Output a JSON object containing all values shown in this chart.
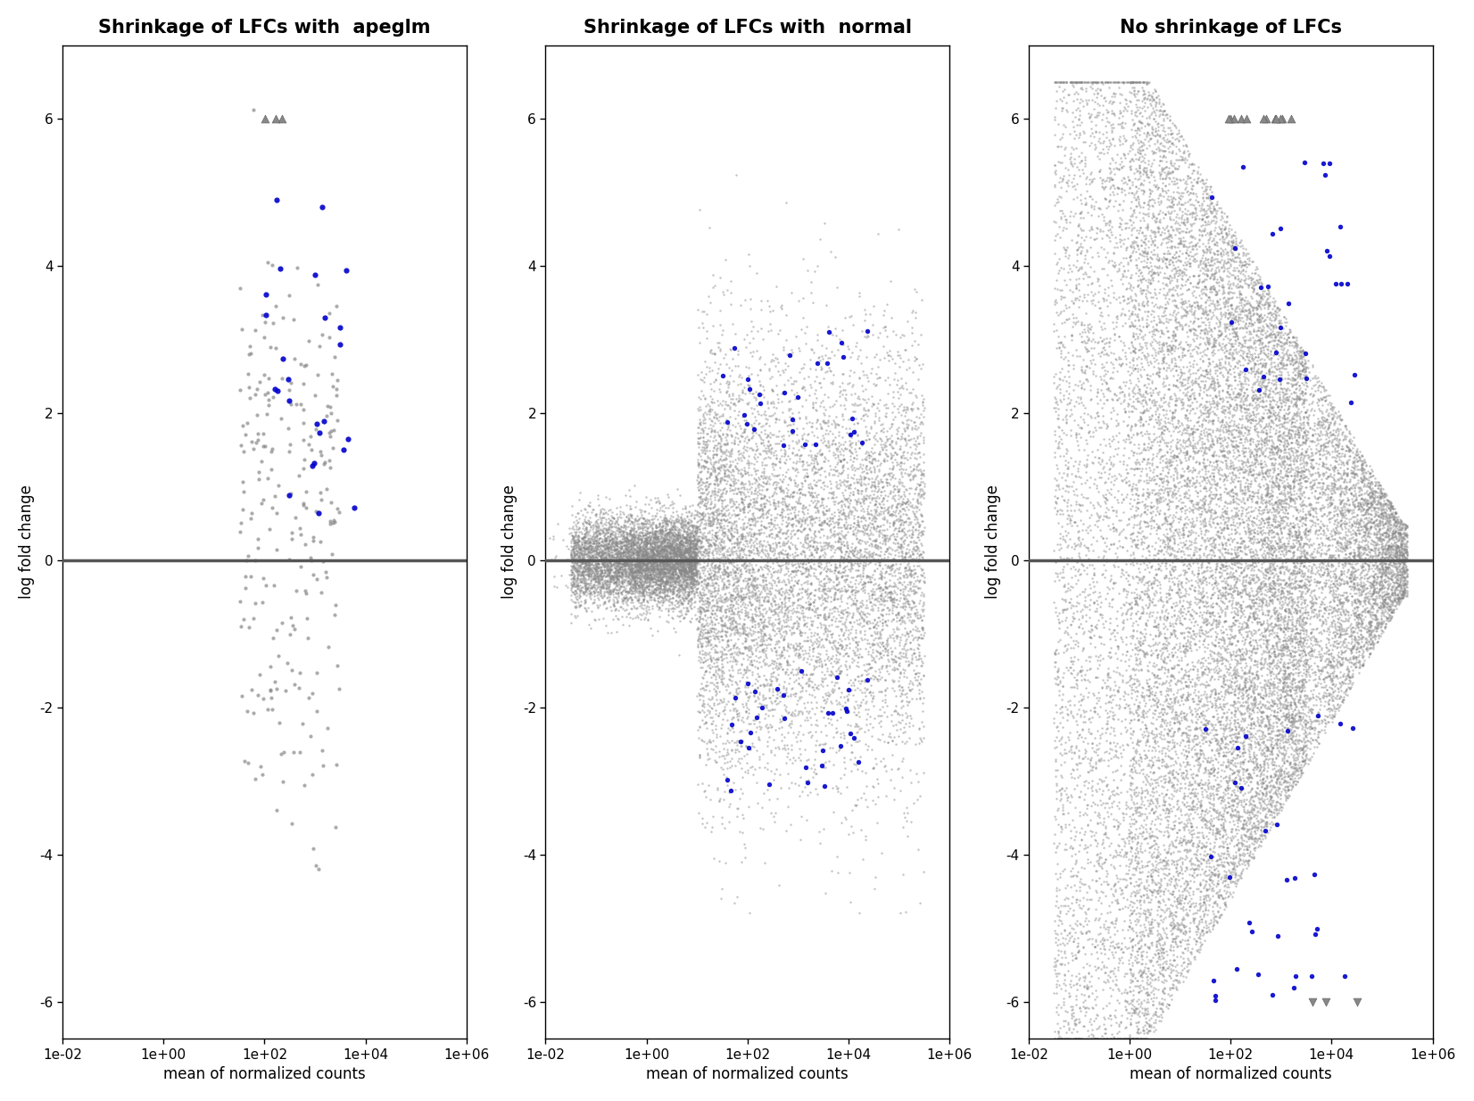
{
  "titles": [
    "Shrinkage of LFCs with  apeglm",
    "Shrinkage of LFCs with  normal",
    "No shrinkage of LFCs"
  ],
  "xlabel": "mean of normalized counts",
  "ylabel": "log fold change",
  "xlim_log": [
    -2,
    6
  ],
  "ylim": [
    -6.5,
    7
  ],
  "yticks": [
    -6,
    -4,
    -2,
    0,
    2,
    4,
    6
  ],
  "xtick_labels": [
    "1e-02",
    "1e+00",
    "1e+02",
    "1e+04",
    "1e+06"
  ],
  "xtick_values": [
    0.01,
    1,
    100,
    10000,
    1000000
  ],
  "hline_color": "#555555",
  "gray_color": "#888888",
  "blue_color": "#0000cc",
  "triangle_color": "#888888",
  "background_color": "#ffffff",
  "title_fontsize": 15,
  "axis_label_fontsize": 12,
  "tick_fontsize": 11,
  "point_size_gray": 3,
  "point_size_blue": 5,
  "n_gray_plot1": 250,
  "n_blue_plot1": 25,
  "n_gray_plot2": 15000,
  "n_blue_plot2": 60,
  "n_gray_plot3": 15000,
  "n_blue_plot3": 60,
  "seed": 42
}
